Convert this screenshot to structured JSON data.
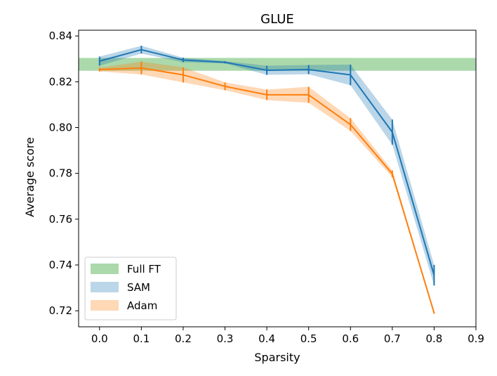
{
  "chart_data": {
    "type": "line",
    "title": "GLUE",
    "xlabel": "Sparsity",
    "ylabel": "Average score",
    "xlim": [
      -0.05,
      0.9
    ],
    "ylim": [
      0.713,
      0.8425
    ],
    "x_ticks": [
      "0.0",
      "0.1",
      "0.2",
      "0.3",
      "0.4",
      "0.5",
      "0.6",
      "0.7",
      "0.8",
      "0.9"
    ],
    "y_ticks": [
      "0.72",
      "0.74",
      "0.76",
      "0.78",
      "0.80",
      "0.82",
      "0.84"
    ],
    "grid": false,
    "legend_position": "lower-left",
    "reference_band": {
      "name": "Full FT",
      "low": 0.8248,
      "high": 0.8304,
      "color": "#2ca02c"
    },
    "series": [
      {
        "name": "SAM",
        "color": "#1f77b4",
        "x": [
          0.0,
          0.1,
          0.2,
          0.3,
          0.4,
          0.5,
          0.6,
          0.7,
          0.8
        ],
        "y": [
          0.829,
          0.834,
          0.8295,
          0.8285,
          0.825,
          0.8253,
          0.823,
          0.798,
          0.7355
        ],
        "err": [
          0.002,
          0.0017,
          0.001,
          0.0005,
          0.002,
          0.002,
          0.0045,
          0.0055,
          0.0045
        ]
      },
      {
        "name": "Adam",
        "color": "#ff7f0e",
        "x": [
          0.0,
          0.1,
          0.2,
          0.3,
          0.4,
          0.5,
          0.6,
          0.7,
          0.8
        ],
        "y": [
          0.8253,
          0.826,
          0.823,
          0.818,
          0.8143,
          0.8143,
          0.8013,
          0.7798,
          0.719
        ],
        "err": [
          0.0008,
          0.0028,
          0.0033,
          0.0017,
          0.0023,
          0.0035,
          0.0028,
          0.0015,
          0.0003
        ]
      }
    ]
  }
}
